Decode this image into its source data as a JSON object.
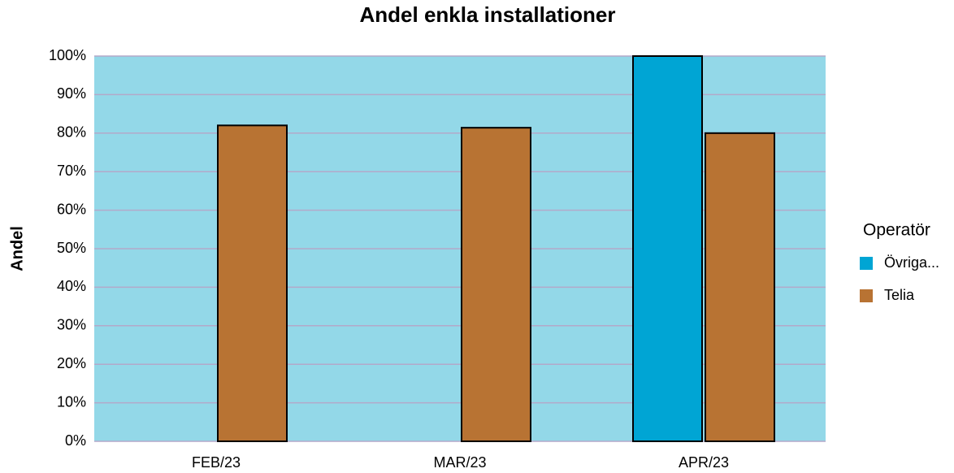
{
  "chart_data": {
    "type": "bar",
    "title": "Andel enkla installationer",
    "y_label": "Andel",
    "legend_title": "Operatör",
    "categories": [
      "FEB/23",
      "MAR/23",
      "APR/23"
    ],
    "series": [
      {
        "name": "Övriga...",
        "color": "#00a5d4",
        "values": [
          null,
          null,
          100
        ]
      },
      {
        "name": "Telia",
        "color": "#b87333",
        "values": [
          82,
          81.4,
          80
        ]
      }
    ],
    "ylim": [
      0,
      100
    ],
    "yticks": [
      {
        "value": 0,
        "label": "0%"
      },
      {
        "value": 10,
        "label": "10%"
      },
      {
        "value": 20,
        "label": "20%"
      },
      {
        "value": 30,
        "label": "30%"
      },
      {
        "value": 40,
        "label": "40%"
      },
      {
        "value": 50,
        "label": "50%"
      },
      {
        "value": 60,
        "label": "60%"
      },
      {
        "value": 70,
        "label": "70%"
      },
      {
        "value": 80,
        "label": "80%"
      },
      {
        "value": 90,
        "label": "90%"
      },
      {
        "value": 100,
        "label": "100%"
      }
    ],
    "grid": true,
    "legend_position": "right"
  }
}
